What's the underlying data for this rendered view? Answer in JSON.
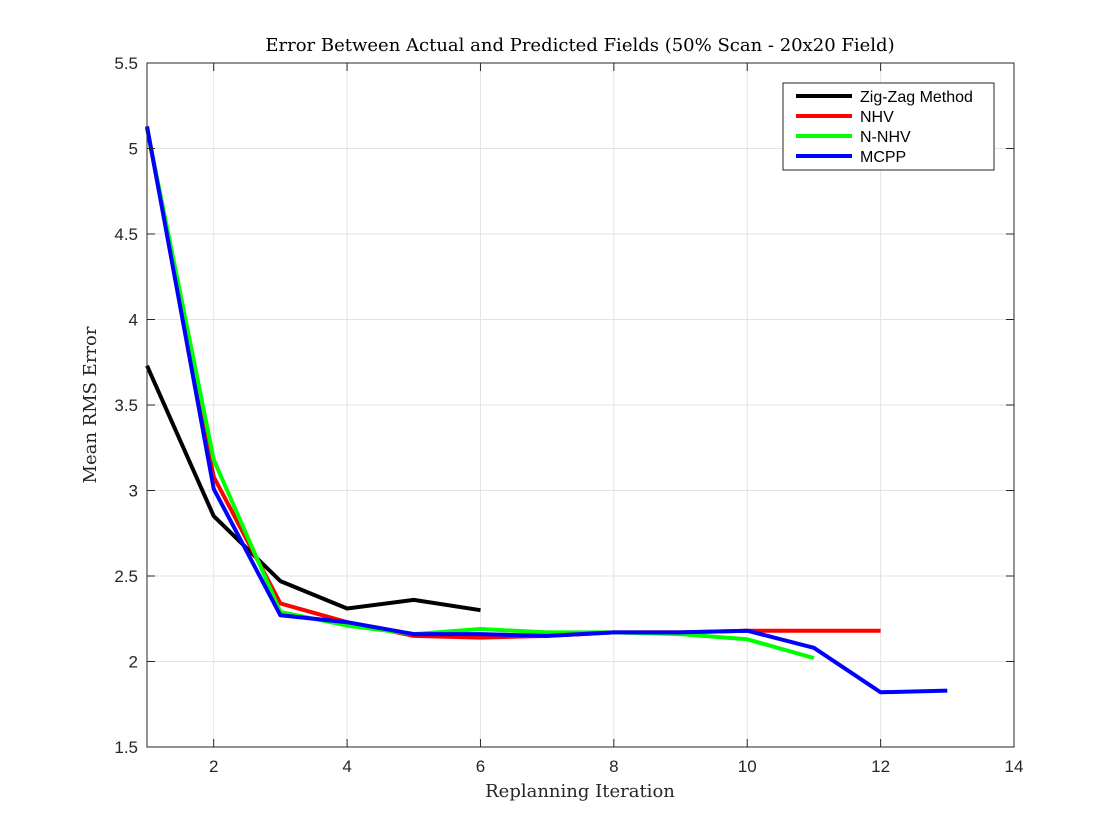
{
  "chart_data": {
    "type": "line",
    "title": "Error Between Actual and Predicted Fields (50% Scan - 20x20 Field)",
    "xlabel": "Replanning Iteration",
    "ylabel": "Mean RMS Error",
    "xlim": [
      1,
      14
    ],
    "ylim": [
      1.5,
      5.5
    ],
    "xticks": [
      2,
      4,
      6,
      8,
      10,
      12,
      14
    ],
    "yticks": [
      1.5,
      2,
      2.5,
      3,
      3.5,
      4,
      4.5,
      5,
      5.5
    ],
    "grid": true,
    "legend_position": "top-right",
    "series": [
      {
        "name": "Zig-Zag Method",
        "color": "#000000",
        "x": [
          1,
          2,
          3,
          4,
          5,
          6
        ],
        "y": [
          3.73,
          2.85,
          2.47,
          2.31,
          2.36,
          2.3
        ]
      },
      {
        "name": "NHV",
        "color": "#ff0000",
        "x": [
          1,
          2,
          3,
          4,
          5,
          6,
          7,
          8,
          9,
          10,
          11,
          12
        ],
        "y": [
          5.12,
          3.08,
          2.34,
          2.23,
          2.15,
          2.14,
          2.15,
          2.17,
          2.17,
          2.18,
          2.18,
          2.18
        ]
      },
      {
        "name": "N-NHV",
        "color": "#00ff00",
        "x": [
          1,
          2,
          3,
          4,
          5,
          6,
          7,
          8,
          9,
          10,
          11
        ],
        "y": [
          5.12,
          3.18,
          2.29,
          2.21,
          2.16,
          2.19,
          2.17,
          2.17,
          2.16,
          2.13,
          2.02
        ]
      },
      {
        "name": "MCPP",
        "color": "#0000ff",
        "x": [
          1,
          2,
          3,
          4,
          5,
          6,
          7,
          8,
          9,
          10,
          11,
          12,
          13
        ],
        "y": [
          5.13,
          3.01,
          2.27,
          2.23,
          2.16,
          2.16,
          2.15,
          2.17,
          2.17,
          2.18,
          2.08,
          1.82,
          1.83
        ]
      }
    ]
  }
}
